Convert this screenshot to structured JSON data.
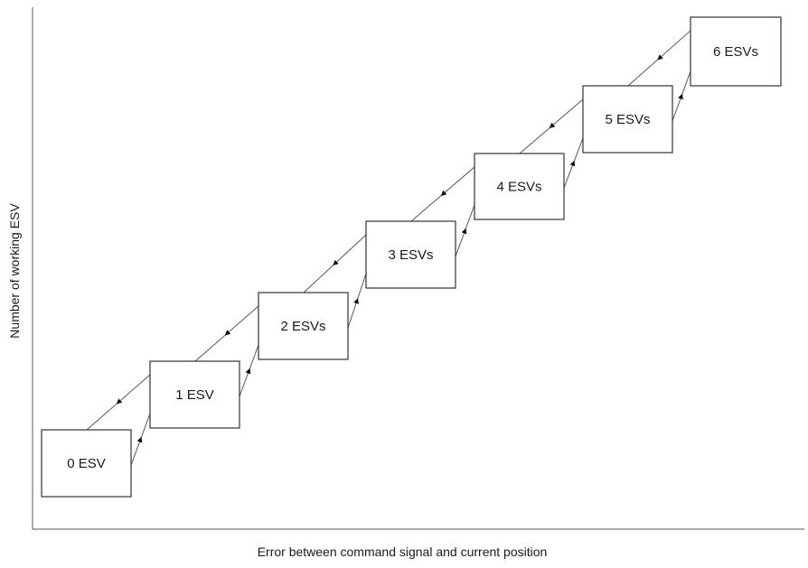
{
  "axes": {
    "y_label": "Number of working ESV",
    "x_label": "Error between command signal and current position"
  },
  "states": [
    {
      "label": "0 ESV"
    },
    {
      "label": "1 ESV"
    },
    {
      "label": "2 ESVs"
    },
    {
      "label": "3 ESVs"
    },
    {
      "label": "4 ESVs"
    },
    {
      "label": "5 ESVs"
    },
    {
      "label": "6 ESVs"
    }
  ],
  "transitions": {
    "up_direction": "increasing",
    "down_direction": "decreasing"
  },
  "colors": {
    "line": "#555555",
    "box_border": "#333333",
    "text": "#1a1a1a"
  }
}
